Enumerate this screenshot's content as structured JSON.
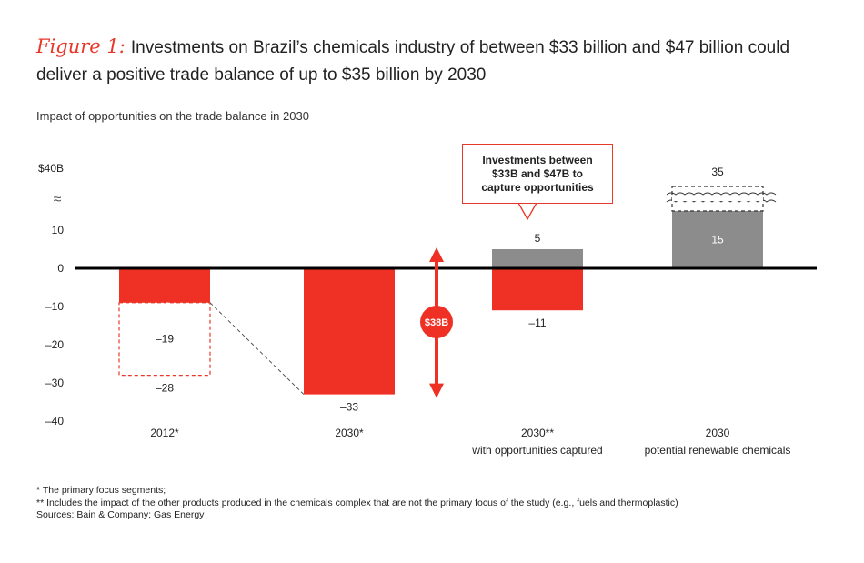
{
  "header": {
    "figure_label": "Figure 1:",
    "title": "Investments on Brazil’s chemicals industry of between $33 billion and $47 billion could deliver a positive trade balance of up to $35 billion by 2030",
    "subtitle": "Impact of opportunities on the trade balance in 2030"
  },
  "chart_data": {
    "type": "bar",
    "ylim": [
      -40,
      40
    ],
    "y_ticks": [
      "$40B",
      "10",
      "0",
      "–10",
      "–20",
      "–30",
      "–40"
    ],
    "axis_break": "≈",
    "categories": [
      {
        "label": "2012*",
        "sublabel": ""
      },
      {
        "label": "2030*",
        "sublabel": ""
      },
      {
        "label": "2030**",
        "sublabel": "with opportunities captured"
      },
      {
        "label": "2030",
        "sublabel": "potential renewable chemicals"
      }
    ],
    "bars": [
      {
        "category": 0,
        "from": 0,
        "to": -9,
        "style": "red",
        "label": "–9"
      },
      {
        "category": 0,
        "from": -9,
        "to": -28,
        "style": "dashed-outline",
        "label": "–19",
        "end_label": "–28"
      },
      {
        "category": 1,
        "from": 0,
        "to": -33,
        "style": "red",
        "label": "–33"
      },
      {
        "category": 2,
        "from": 0,
        "to": 5,
        "style": "gray",
        "label": "5"
      },
      {
        "category": 2,
        "from": 0,
        "to": -11,
        "style": "red",
        "label": "–11"
      },
      {
        "category": 3,
        "from": 0,
        "to": 15,
        "style": "gray",
        "label": "15"
      },
      {
        "category": 3,
        "from": 15,
        "to": 35,
        "style": "dashed-outline-broken",
        "label": "35"
      }
    ],
    "gap_arrow": {
      "from": -33,
      "to": 5,
      "label": "$38B"
    },
    "annotation": "Investments between $33B and $47B to capture opportunities",
    "colors": {
      "red": "#ee3124",
      "gray": "#8c8c8c",
      "axis": "#000000",
      "dashed": "#e8382a"
    }
  },
  "footnotes": {
    "note1": "* The primary focus segments;",
    "note2": "** Includes the impact of the other products produced in the chemicals complex that are not the primary focus of the study (e.g., fuels and thermoplastic)",
    "sources": "Sources: Bain & Company; Gas Energy"
  }
}
